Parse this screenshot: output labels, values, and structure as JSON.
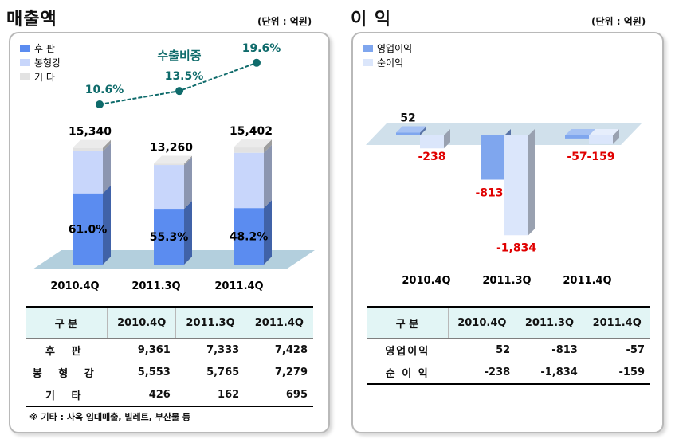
{
  "left": {
    "title": "매출액",
    "unit": "(단위 : 억원)",
    "legend": [
      "후  판",
      "봉형강",
      "기  타"
    ],
    "ratio_title": "수출비중",
    "table": {
      "header": [
        "구    분",
        "2010.4Q",
        "2011.3Q",
        "2011.4Q"
      ],
      "rows": [
        {
          "label": "후    판",
          "values": [
            "9,361",
            "7,333",
            "7,428"
          ]
        },
        {
          "label": "봉 형 강",
          "values": [
            "5,553",
            "5,765",
            "7,279"
          ]
        },
        {
          "label": "기    타",
          "values": [
            "426",
            "162",
            "695"
          ]
        }
      ]
    },
    "note": "※ 기타 : 사옥 임대매출, 빌레트, 부산물 등"
  },
  "right": {
    "title": "이 익",
    "unit": "(단위 : 억원)",
    "legend": [
      "영업이익",
      "순이익"
    ],
    "table": {
      "header": [
        "구    분",
        "2010.4Q",
        "2011.3Q",
        "2011.4Q"
      ],
      "rows": [
        {
          "label": "영업이익",
          "values": [
            "52",
            "-813",
            "-57"
          ]
        },
        {
          "label": "순 이 익",
          "values": [
            "-238",
            "-1,834",
            "-159"
          ]
        }
      ]
    }
  },
  "chart_data": [
    {
      "type": "bar",
      "stacked": true,
      "categories": [
        "2010.4Q",
        "2011.3Q",
        "2011.4Q"
      ],
      "series": [
        {
          "name": "후  판",
          "values": [
            9361,
            7333,
            7428
          ],
          "color": "#5b8cf0"
        },
        {
          "name": "봉형강",
          "values": [
            5553,
            5765,
            7279
          ],
          "color": "#c8d6fb"
        },
        {
          "name": "기  타",
          "values": [
            426,
            162,
            695
          ],
          "color": "#e2e2e2"
        }
      ],
      "totals": [
        15340,
        13260,
        15402
      ],
      "total_labels": [
        "15,340",
        "13,260",
        "15,402"
      ],
      "share_labels": [
        "61.0%",
        "55.3%",
        "48.2%"
      ]
    },
    {
      "type": "line",
      "title": "수출비중",
      "categories": [
        "2010.4Q",
        "2011.3Q",
        "2011.4Q"
      ],
      "values": [
        10.6,
        13.5,
        19.6
      ],
      "labels": [
        "10.6%",
        "13.5%",
        "19.6%"
      ],
      "color": "#0f6b6b"
    },
    {
      "type": "bar",
      "categories": [
        "2010.4Q",
        "2011.3Q",
        "2011.4Q"
      ],
      "series": [
        {
          "name": "영업이익",
          "values": [
            52,
            -813,
            -57
          ],
          "labels": [
            "52",
            "-813",
            "-57"
          ],
          "color": "#7fa6ee"
        },
        {
          "name": "순이익",
          "values": [
            -238,
            -1834,
            -159
          ],
          "labels": [
            "-238",
            "-1,834",
            "-159"
          ],
          "color": "#dbe6fb"
        }
      ],
      "label_color_negative": "#e00000"
    }
  ]
}
